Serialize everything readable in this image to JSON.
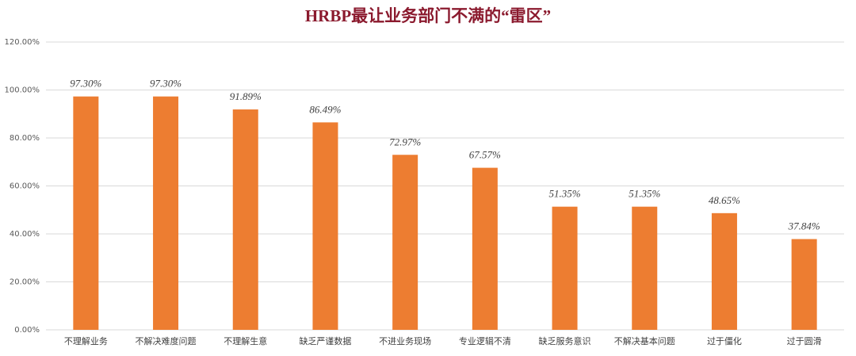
{
  "chart_data": {
    "type": "bar",
    "title": "HRBP最让业务部门不满的“雷区”",
    "categories": [
      "不理解业务",
      "不解决难度问题",
      "不理解生意",
      "缺乏严谨数据",
      "不进业务现场",
      "专业逻辑不清",
      "缺乏服务意识",
      "不解决基本问题",
      "过于僵化",
      "过于圆滑"
    ],
    "values": [
      97.3,
      97.3,
      91.89,
      86.49,
      72.97,
      67.57,
      51.35,
      51.35,
      48.65,
      37.84
    ],
    "value_labels": [
      "97.30%",
      "97.30%",
      "91.89%",
      "86.49%",
      "72.97%",
      "67.57%",
      "51.35%",
      "51.35%",
      "48.65%",
      "37.84%"
    ],
    "color": "#ed7d31",
    "ylim": [
      0,
      120
    ],
    "yticks": [
      {
        "value": 0,
        "label": "0.00%"
      },
      {
        "value": 20,
        "label": "20.00%"
      },
      {
        "value": 40,
        "label": "40.00%"
      },
      {
        "value": 60,
        "label": "60.00%"
      },
      {
        "value": 80,
        "label": "80.00%"
      },
      {
        "value": 100,
        "label": "100.00%"
      },
      {
        "value": 120,
        "label": "120.00%"
      }
    ],
    "grid": true
  }
}
